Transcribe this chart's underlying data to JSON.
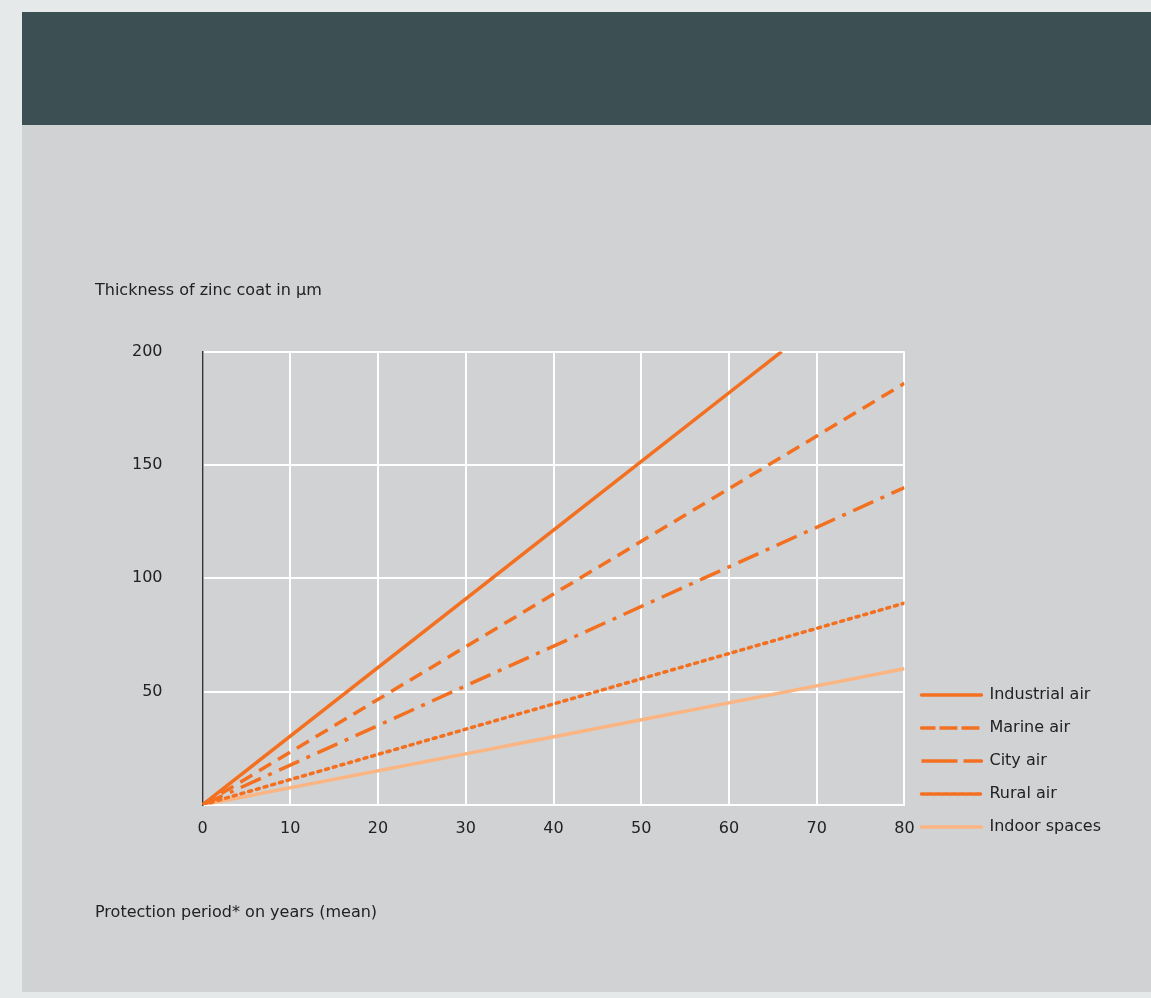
{
  "chart_data": {
    "type": "line",
    "ylabel": "Thickness of zinc coat in µm",
    "xlabel": "Protection period* on years (mean)",
    "xlim": [
      0,
      80
    ],
    "xticks": [
      0,
      10,
      20,
      30,
      40,
      50,
      60,
      70,
      80
    ],
    "ylim": [
      0,
      200
    ],
    "yticks": [
      50,
      100,
      150,
      200
    ],
    "grid": true,
    "legend": "right",
    "marker": "none",
    "series": [
      {
        "name": "Industrial air",
        "color": "#f37021",
        "line_style": "solid",
        "x": [
          0,
          66
        ],
        "values": [
          0,
          200
        ]
      },
      {
        "name": "Marine air",
        "color": "#f37021",
        "line_style": "dashed",
        "x": [
          0,
          80
        ],
        "values": [
          0,
          186
        ]
      },
      {
        "name": "City air",
        "color": "#f37021",
        "line_style": "dashdot",
        "x": [
          0,
          80
        ],
        "values": [
          0,
          140
        ]
      },
      {
        "name": "Rural air",
        "color": "#f37021",
        "line_style": "dotted",
        "x": [
          0,
          80
        ],
        "values": [
          0,
          89
        ]
      },
      {
        "name": "Indoor spaces",
        "color": "#fbb583",
        "line_style": "solid",
        "x": [
          0,
          80
        ],
        "values": [
          0,
          60
        ]
      }
    ]
  }
}
